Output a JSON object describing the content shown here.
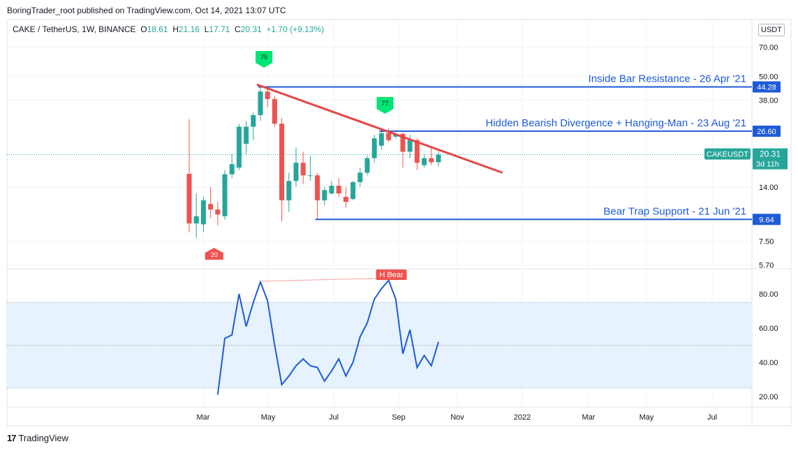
{
  "header": {
    "published": "BoringTrader_root published on TradingView.com, Oct 14, 2021 13:07 UTC"
  },
  "symbol": {
    "name": "CAKE / TetherUS, 1W, BINANCE",
    "o_label": "O",
    "o": "18.61",
    "h_label": "H",
    "h": "21.16",
    "l_label": "L",
    "l": "17.71",
    "c_label": "C",
    "c": "20.31",
    "change": "+1.70 (+9.13%)"
  },
  "currency_button": "USDT",
  "footer": {
    "brand": "TradingView",
    "logo": "17"
  },
  "colors": {
    "up": "#26a69a",
    "down": "#ef5350",
    "line": "#1e5bd6",
    "trend": "#e54545",
    "band": "#e6f2fd"
  },
  "chart_data": [
    {
      "type": "candlestick",
      "scale": "log",
      "ylim": [
        5.7,
        100
      ],
      "y_ticks": [
        "70.00",
        "50.00",
        "38.00",
        "14.00",
        "7.50",
        "5.70"
      ],
      "x_ticks": [
        "Mar",
        "May",
        "Jul",
        "Sep",
        "Nov",
        "2022",
        "Mar",
        "May",
        "Jul"
      ],
      "candles": [
        {
          "o": 16.3,
          "h": 30.5,
          "l": 8.3,
          "c": 9.2
        },
        {
          "o": 9.2,
          "h": 13.0,
          "l": 7.8,
          "c": 10.0
        },
        {
          "o": 9.1,
          "h": 12.5,
          "l": 8.3,
          "c": 12.0
        },
        {
          "o": 11.5,
          "h": 14.0,
          "l": 9.8,
          "c": 10.8
        },
        {
          "o": 10.8,
          "h": 11.8,
          "l": 9.0,
          "c": 10.2
        },
        {
          "o": 10.0,
          "h": 17.0,
          "l": 9.6,
          "c": 16.2
        },
        {
          "o": 16.2,
          "h": 20.5,
          "l": 15.5,
          "c": 18.2
        },
        {
          "o": 17.5,
          "h": 29.0,
          "l": 17.0,
          "c": 28.0
        },
        {
          "o": 23.0,
          "h": 30.0,
          "l": 20.5,
          "c": 28.0
        },
        {
          "o": 28.0,
          "h": 33.0,
          "l": 24.0,
          "c": 32.0
        },
        {
          "o": 32.0,
          "h": 44.5,
          "l": 30.0,
          "c": 42.0
        },
        {
          "o": 42.0,
          "h": 44.0,
          "l": 35.0,
          "c": 38.5
        },
        {
          "o": 38.5,
          "h": 40.0,
          "l": 28.0,
          "c": 29.0
        },
        {
          "o": 29.0,
          "h": 31.0,
          "l": 9.4,
          "c": 12.0
        },
        {
          "o": 12.0,
          "h": 16.5,
          "l": 10.5,
          "c": 15.0
        },
        {
          "o": 15.0,
          "h": 22.0,
          "l": 14.0,
          "c": 18.5
        },
        {
          "o": 18.5,
          "h": 21.0,
          "l": 14.5,
          "c": 16.0
        },
        {
          "o": 16.0,
          "h": 20.0,
          "l": 15.0,
          "c": 16.0
        },
        {
          "o": 16.0,
          "h": 16.5,
          "l": 9.7,
          "c": 12.0
        },
        {
          "o": 12.0,
          "h": 14.0,
          "l": 11.3,
          "c": 13.5
        },
        {
          "o": 13.0,
          "h": 15.0,
          "l": 12.8,
          "c": 14.2
        },
        {
          "o": 14.2,
          "h": 15.5,
          "l": 12.5,
          "c": 13.0
        },
        {
          "o": 12.5,
          "h": 14.0,
          "l": 11.0,
          "c": 11.8
        },
        {
          "o": 12.2,
          "h": 15.0,
          "l": 12.0,
          "c": 14.8
        },
        {
          "o": 14.8,
          "h": 17.5,
          "l": 14.0,
          "c": 16.5
        },
        {
          "o": 16.5,
          "h": 20.0,
          "l": 16.0,
          "c": 19.5
        },
        {
          "o": 19.5,
          "h": 25.5,
          "l": 18.5,
          "c": 24.5
        },
        {
          "o": 22.5,
          "h": 26.5,
          "l": 21.5,
          "c": 26.0
        },
        {
          "o": 26.0,
          "h": 27.5,
          "l": 23.5,
          "c": 24.0
        },
        {
          "o": 25.0,
          "h": 26.3,
          "l": 24.5,
          "c": 25.8
        },
        {
          "o": 25.8,
          "h": 26.2,
          "l": 17.5,
          "c": 21.0
        },
        {
          "o": 21.0,
          "h": 25.5,
          "l": 19.5,
          "c": 24.0
        },
        {
          "o": 24.0,
          "h": 24.5,
          "l": 17.0,
          "c": 18.5
        },
        {
          "o": 18.0,
          "h": 20.5,
          "l": 17.5,
          "c": 19.5
        },
        {
          "o": 19.5,
          "h": 22.0,
          "l": 18.0,
          "c": 18.6
        },
        {
          "o": 18.61,
          "h": 21.16,
          "l": 17.71,
          "c": 20.31
        }
      ],
      "horizontal_lines": [
        {
          "label": "Inside Bar Resistance - 26 Apr '21",
          "value": 44.28,
          "price_label": "44.28",
          "from_index": 10
        },
        {
          "label": "Hidden Bearish Divergence + Hanging-Man - 23 Aug '21",
          "value": 26.6,
          "price_label": "26.60",
          "from_index": 27
        },
        {
          "label": "Bear Trap Support - 21 Jun '21",
          "value": 9.64,
          "price_label": "9.64",
          "from_index": 18
        }
      ],
      "trendline": {
        "from_index": 9.5,
        "from_value": 45.5,
        "to_index": 44,
        "to_value": 16.5
      },
      "markers": [
        {
          "text": "75",
          "index": 10.5,
          "kind": "up-flag"
        },
        {
          "text": "77",
          "index": 27.5,
          "kind": "up-flag"
        },
        {
          "text": "20",
          "index": 3.5,
          "kind": "down-flag"
        }
      ],
      "last_price": {
        "symbol": "CAKEUSDT",
        "value": "20.31",
        "countdown": "3d 11h"
      }
    },
    {
      "type": "line",
      "name": "oscillator",
      "ylim": [
        15,
        95
      ],
      "y_ticks": [
        "80.00",
        "60.00",
        "40.00",
        "20.00"
      ],
      "band": [
        25,
        75
      ],
      "mid": 50,
      "values": [
        21,
        54,
        56,
        80,
        61,
        75,
        87,
        76,
        50,
        27,
        32,
        38,
        42,
        38,
        37,
        29,
        35,
        42,
        32,
        40,
        55,
        63,
        77,
        83,
        88,
        77,
        45,
        59,
        37,
        44,
        38,
        52
      ],
      "start_index": 4,
      "divergence_label": "H Bear"
    }
  ]
}
